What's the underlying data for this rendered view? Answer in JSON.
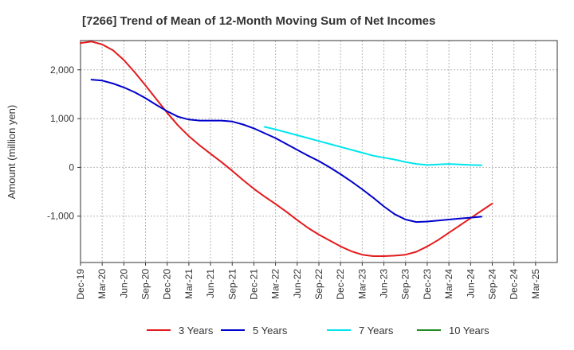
{
  "chart_data": {
    "type": "line",
    "title": "[7266]  Trend of Mean of 12-Month Moving Sum of Net Incomes",
    "xlabel": "",
    "ylabel": "Amount (million yen)",
    "ylim": [
      -1950,
      2600
    ],
    "xlim": [
      0,
      22
    ],
    "grid": true,
    "legend_position": "bottom",
    "x_tick_labels": [
      "Dec-19",
      "Mar-20",
      "Jun-20",
      "Sep-20",
      "Dec-20",
      "Mar-21",
      "Jun-21",
      "Sep-21",
      "Dec-21",
      "Mar-22",
      "Jun-22",
      "Sep-22",
      "Dec-22",
      "Mar-23",
      "Jun-23",
      "Sep-23",
      "Dec-23",
      "Mar-24",
      "Jun-24",
      "Sep-24",
      "Dec-24",
      "Mar-25"
    ],
    "y_ticks": [
      2000,
      1000,
      0,
      -1000
    ],
    "y_tick_labels": [
      "2,000",
      "1,000",
      "0",
      "-1,000"
    ],
    "series": [
      {
        "name": "3 Years",
        "color": "#e31a1c",
        "points": [
          [
            0,
            2550
          ],
          [
            0.5,
            2580
          ],
          [
            1,
            2520
          ],
          [
            1.5,
            2400
          ],
          [
            2,
            2200
          ],
          [
            2.5,
            1950
          ],
          [
            3,
            1680
          ],
          [
            3.5,
            1400
          ],
          [
            4,
            1120
          ],
          [
            4.5,
            860
          ],
          [
            5,
            640
          ],
          [
            5.5,
            450
          ],
          [
            6,
            280
          ],
          [
            6.5,
            110
          ],
          [
            7,
            -70
          ],
          [
            7.5,
            -260
          ],
          [
            8,
            -440
          ],
          [
            8.5,
            -600
          ],
          [
            9,
            -750
          ],
          [
            9.5,
            -910
          ],
          [
            10,
            -1080
          ],
          [
            10.5,
            -1240
          ],
          [
            11,
            -1380
          ],
          [
            11.5,
            -1500
          ],
          [
            12,
            -1620
          ],
          [
            12.5,
            -1720
          ],
          [
            13,
            -1790
          ],
          [
            13.5,
            -1820
          ],
          [
            14,
            -1820
          ],
          [
            14.5,
            -1810
          ],
          [
            15,
            -1790
          ],
          [
            15.5,
            -1730
          ],
          [
            16,
            -1620
          ],
          [
            16.5,
            -1490
          ],
          [
            17,
            -1340
          ],
          [
            17.5,
            -1190
          ],
          [
            18,
            -1040
          ],
          [
            18.5,
            -890
          ],
          [
            19,
            -740
          ]
        ]
      },
      {
        "name": "5 Years",
        "color": "#0000cc",
        "points": [
          [
            0.5,
            1800
          ],
          [
            1,
            1780
          ],
          [
            1.5,
            1720
          ],
          [
            2,
            1640
          ],
          [
            2.5,
            1540
          ],
          [
            3,
            1420
          ],
          [
            3.5,
            1280
          ],
          [
            4,
            1150
          ],
          [
            4.5,
            1040
          ],
          [
            5,
            980
          ],
          [
            5.5,
            960
          ],
          [
            6,
            960
          ],
          [
            6.5,
            960
          ],
          [
            7,
            940
          ],
          [
            7.5,
            880
          ],
          [
            8,
            800
          ],
          [
            8.5,
            700
          ],
          [
            9,
            600
          ],
          [
            9.5,
            480
          ],
          [
            10,
            360
          ],
          [
            10.5,
            240
          ],
          [
            11,
            130
          ],
          [
            11.5,
            0
          ],
          [
            12,
            -140
          ],
          [
            12.5,
            -290
          ],
          [
            13,
            -450
          ],
          [
            13.5,
            -620
          ],
          [
            14,
            -800
          ],
          [
            14.5,
            -960
          ],
          [
            15,
            -1070
          ],
          [
            15.5,
            -1120
          ],
          [
            16,
            -1110
          ],
          [
            16.5,
            -1090
          ],
          [
            17,
            -1070
          ],
          [
            17.5,
            -1050
          ],
          [
            18,
            -1030
          ],
          [
            18.5,
            -1010
          ]
        ]
      },
      {
        "name": "7 Years",
        "color": "#00e5ee",
        "points": [
          [
            8.5,
            830
          ],
          [
            9,
            780
          ],
          [
            9.5,
            720
          ],
          [
            10,
            660
          ],
          [
            10.5,
            600
          ],
          [
            11,
            540
          ],
          [
            11.5,
            480
          ],
          [
            12,
            420
          ],
          [
            12.5,
            360
          ],
          [
            13,
            300
          ],
          [
            13.5,
            240
          ],
          [
            14,
            200
          ],
          [
            14.5,
            160
          ],
          [
            15,
            110
          ],
          [
            15.5,
            70
          ],
          [
            16,
            50
          ],
          [
            16.5,
            60
          ],
          [
            17,
            70
          ],
          [
            17.5,
            60
          ],
          [
            18,
            50
          ],
          [
            18.5,
            45
          ]
        ]
      },
      {
        "name": "10 Years",
        "color": "#228b22",
        "points": []
      }
    ]
  }
}
